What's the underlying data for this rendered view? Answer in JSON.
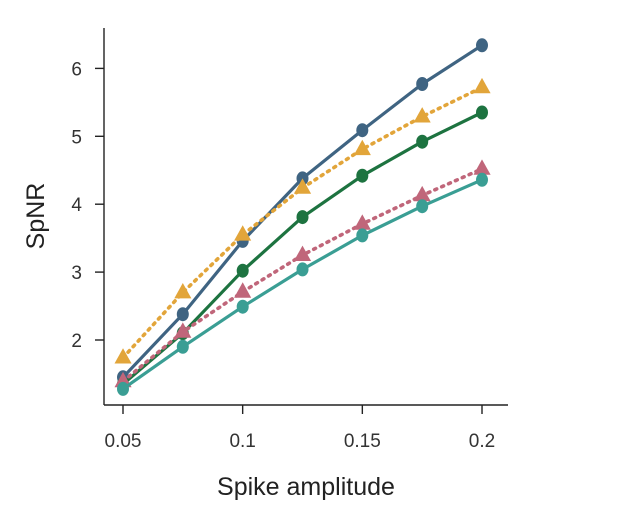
{
  "chart_data": {
    "type": "line",
    "xlabel": "Spike amplitude",
    "ylabel": "SpNR",
    "xlim": [
      0.045,
      0.211
    ],
    "ylim": [
      1.0,
      6.6
    ],
    "x_ticks": [
      0.05,
      0.1,
      0.15,
      0.2
    ],
    "x_tick_labels": [
      "0.05",
      "0.1",
      "0.15",
      "0.2"
    ],
    "y_ticks": [
      2,
      3,
      4,
      5,
      6
    ],
    "y_tick_labels": [
      "2",
      "3",
      "4",
      "5",
      "6"
    ],
    "grid": false,
    "x": [
      0.05,
      0.075,
      0.1,
      0.125,
      0.15,
      0.175,
      0.2
    ],
    "series": [
      {
        "color": "#3f6482",
        "marker": "circle",
        "line": "solid",
        "values": [
          1.45,
          2.38,
          3.46,
          4.38,
          5.09,
          5.77,
          6.34
        ]
      },
      {
        "color": "#e2a53a",
        "marker": "triangle",
        "line": "dotted",
        "values": [
          1.74,
          2.7,
          3.55,
          4.24,
          4.81,
          5.29,
          5.72
        ]
      },
      {
        "color": "#1d7340",
        "marker": "circle",
        "line": "solid",
        "values": [
          1.35,
          2.1,
          3.02,
          3.81,
          4.42,
          4.92,
          5.35
        ]
      },
      {
        "color": "#c0667a",
        "marker": "triangle",
        "line": "dotted",
        "values": [
          1.39,
          2.12,
          2.71,
          3.25,
          3.71,
          4.13,
          4.52
        ]
      },
      {
        "color": "#3a9e94",
        "marker": "circle",
        "line": "solid",
        "values": [
          1.28,
          1.9,
          2.49,
          3.04,
          3.54,
          3.97,
          4.36
        ]
      }
    ]
  }
}
